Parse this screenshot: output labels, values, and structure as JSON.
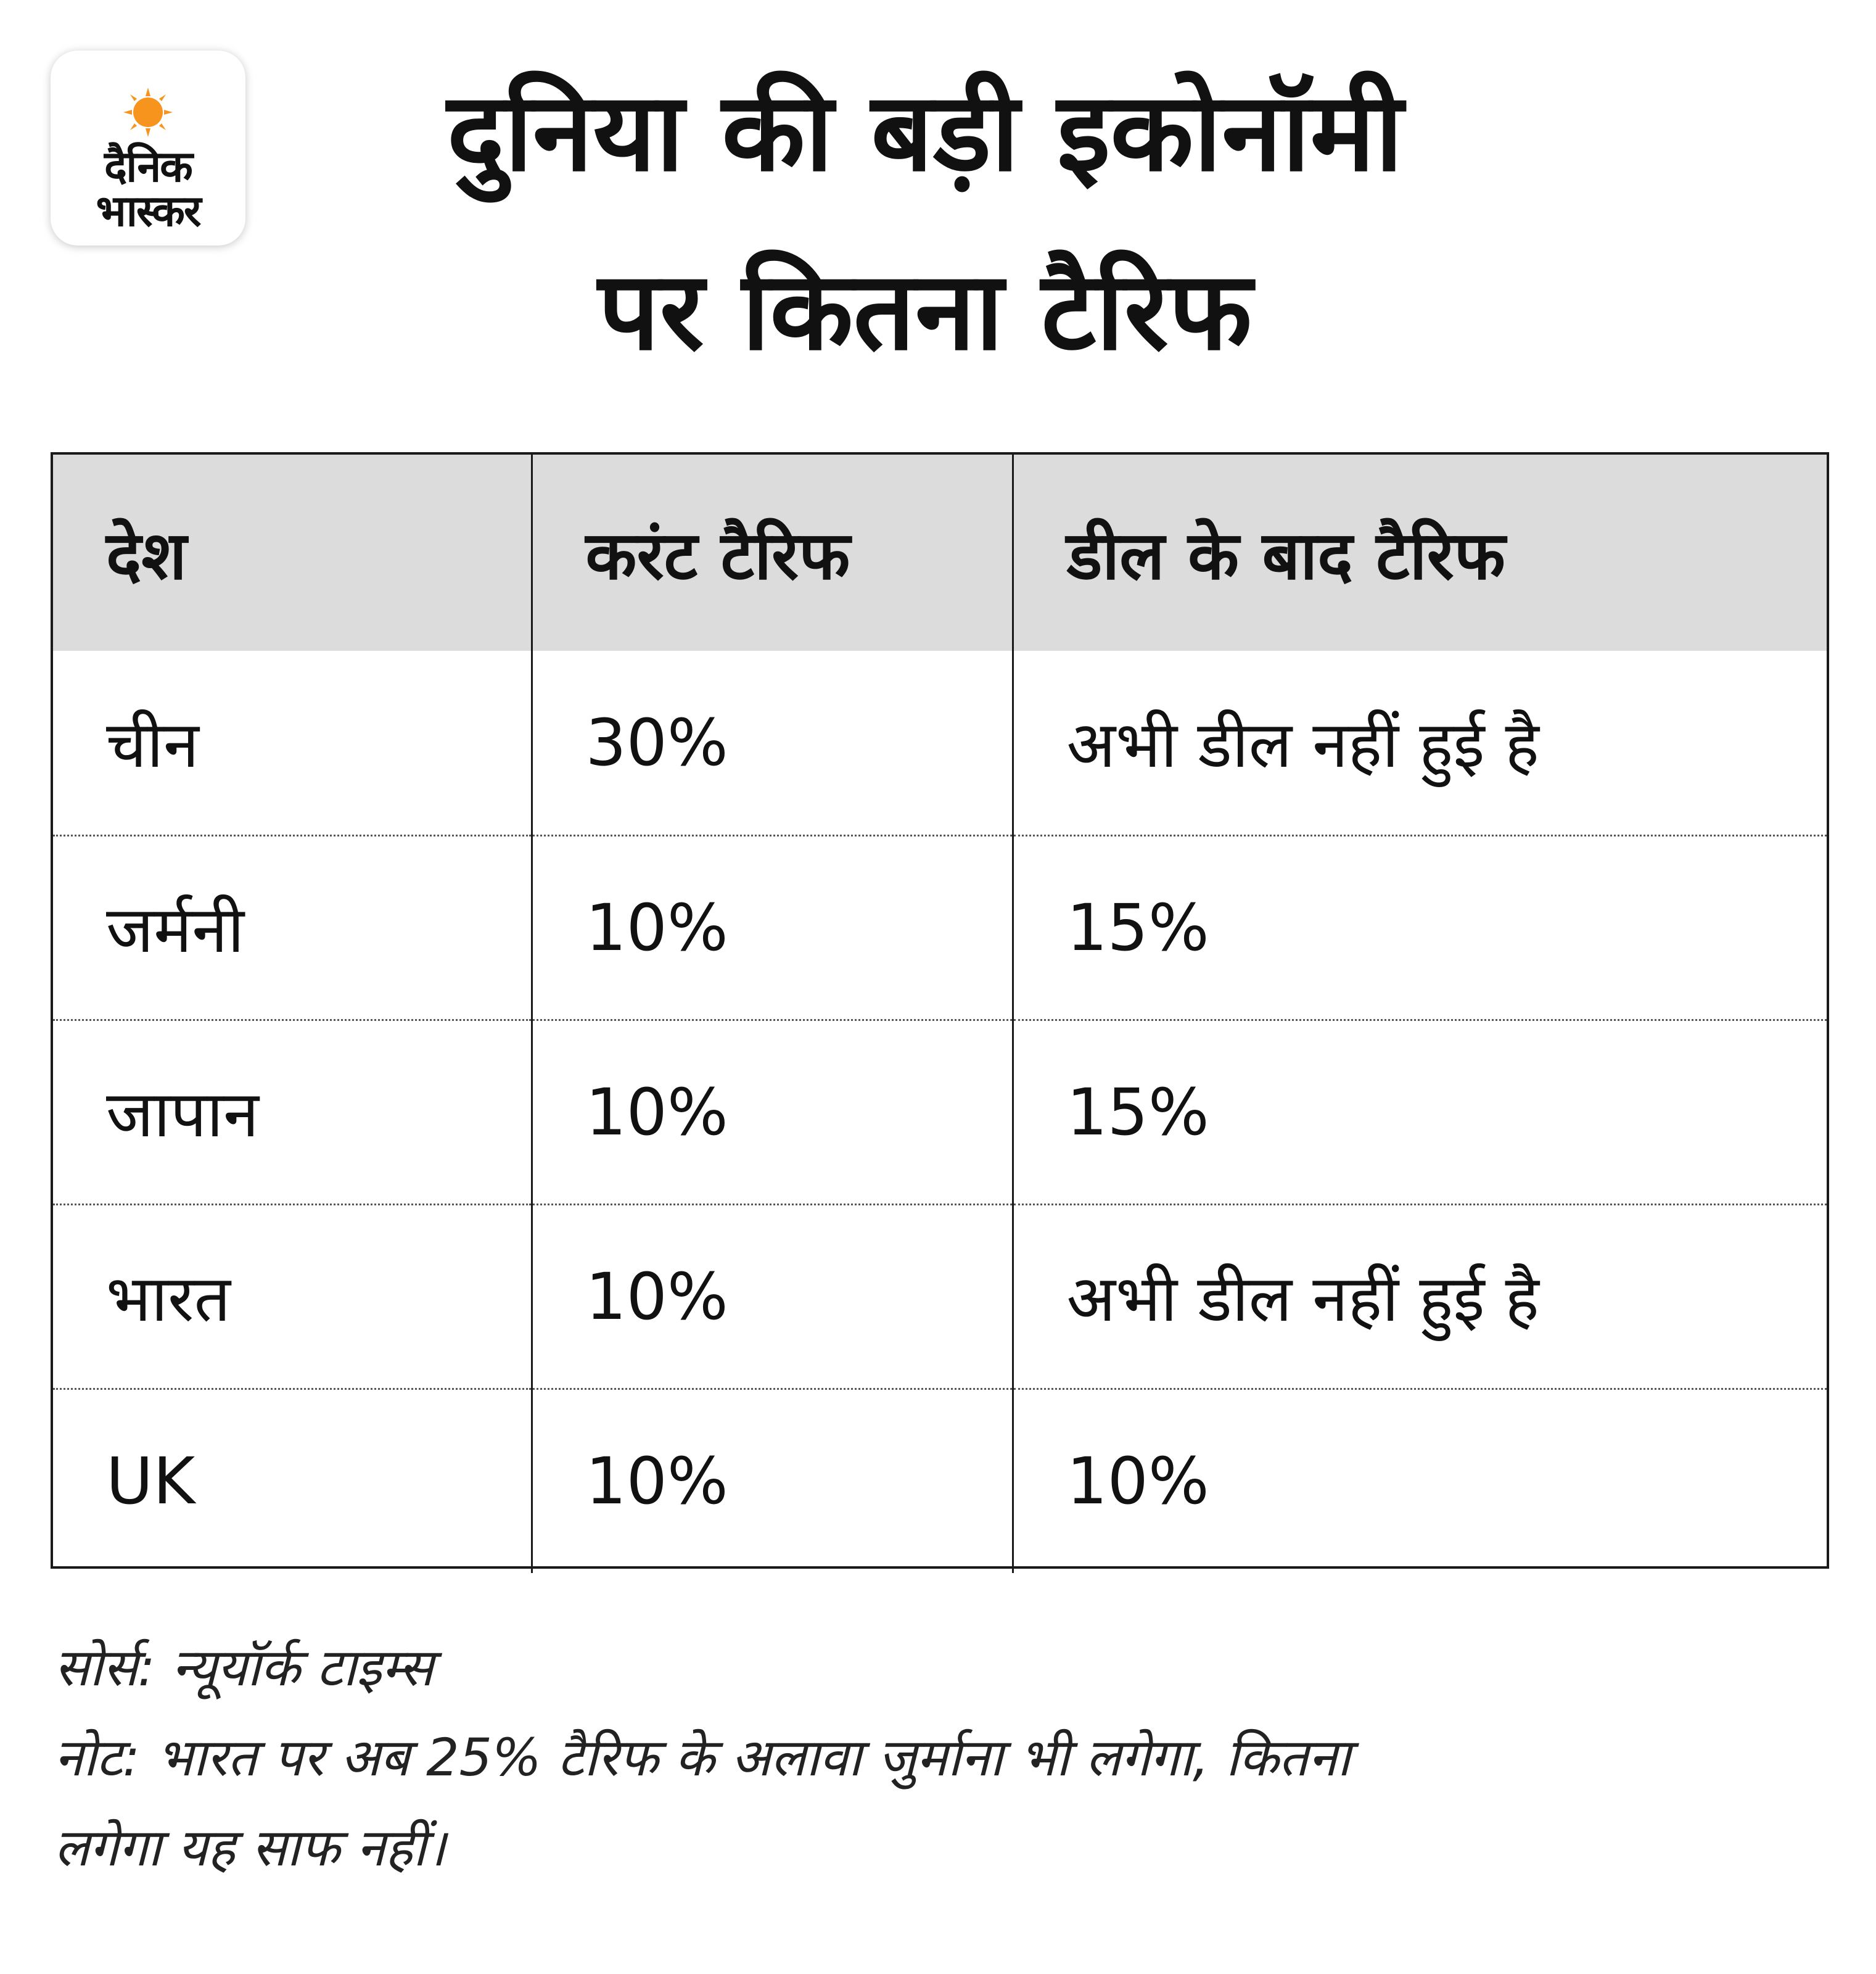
{
  "brand": {
    "line1": "दैनिक",
    "line2": "भास्कर",
    "sun_color": "#f7941d"
  },
  "title": {
    "line1": "दुनिया की बड़ी इकोनॉमी",
    "line2": "पर कितना टैरिफ"
  },
  "table": {
    "headers": [
      "देश",
      "करंट टैरिफ",
      "डील के बाद टैरिफ"
    ],
    "rows": [
      [
        "चीन",
        "30%",
        "अभी डील नहीं हुई है"
      ],
      [
        "जर्मनी",
        "10%",
        "15%"
      ],
      [
        "जापान",
        "10%",
        "15%"
      ],
      [
        "भारत",
        "10%",
        "अभी डील नहीं हुई है"
      ],
      [
        "UK",
        "10%",
        "10%"
      ]
    ],
    "header_bg": "#dcdcdc"
  },
  "footer": {
    "source": "सोर्स: न्यूयॉर्क टाइम्स",
    "note_line1": "नोट: भारत पर अब 25% टैरिफ के अलावा जुर्माना भी लगेगा, कितना",
    "note_line2": "लगेगा यह साफ नहीं।"
  }
}
